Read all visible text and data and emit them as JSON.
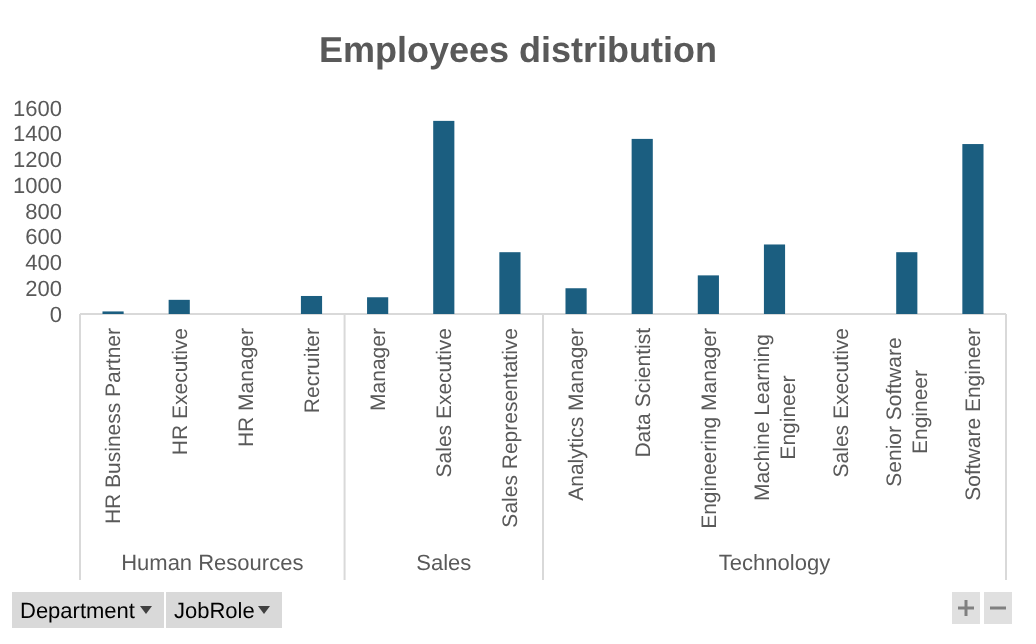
{
  "chart_data": {
    "type": "bar",
    "title": "Employees distribution",
    "categories": [
      "HR Business Partner",
      "HR Executive",
      "HR Manager",
      "Recruiter",
      "Manager",
      "Sales Executive",
      "Sales Representative",
      "Analytics Manager",
      "Data Scientist",
      "Engineering Manager",
      "Machine Learning Engineer",
      "Sales Executive",
      "Senior Software Engineer",
      "Software Engineer"
    ],
    "values": [
      20,
      110,
      0,
      140,
      130,
      1500,
      480,
      200,
      1360,
      300,
      540,
      0,
      480,
      1320
    ],
    "color": "#1b5e80",
    "ylim": [
      0,
      1600
    ],
    "yticks": [
      0,
      200,
      400,
      600,
      800,
      1000,
      1200,
      1400,
      1600
    ],
    "grid": false,
    "annotations": [
      "Human Resources",
      "Sales",
      "Technology",
      "Department",
      "JobRole"
    ]
  }
}
